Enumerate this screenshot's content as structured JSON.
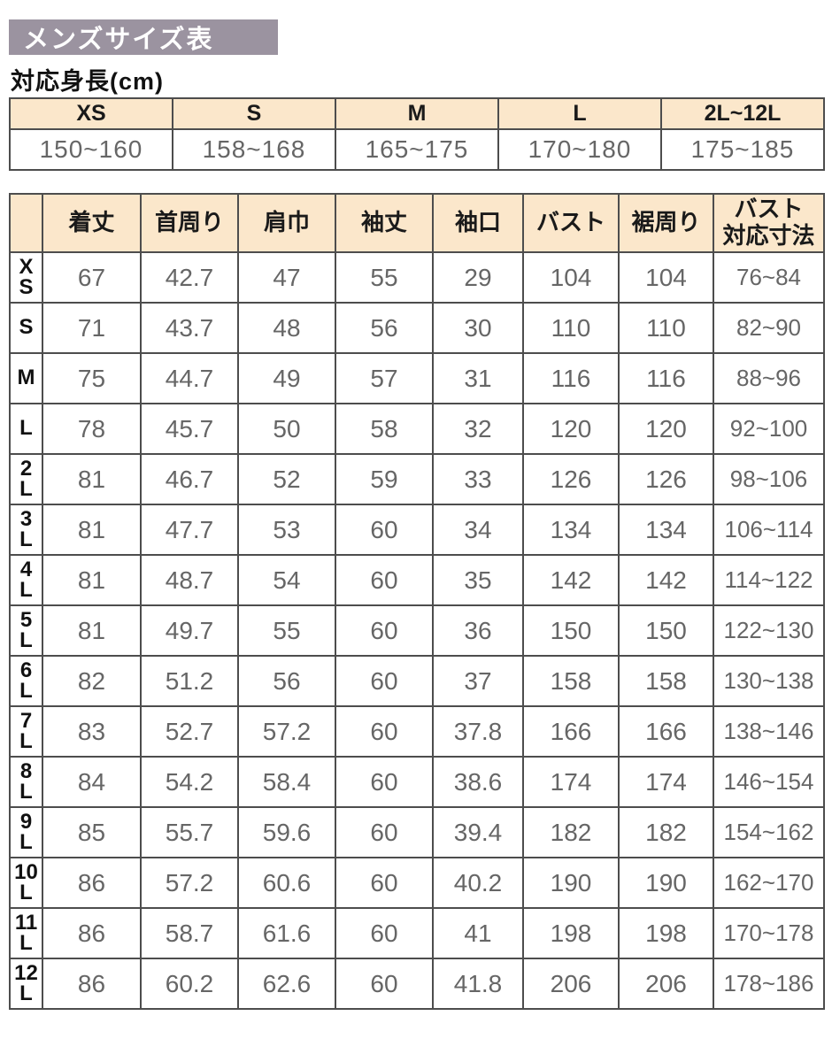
{
  "page": {
    "title": "メンズサイズ表",
    "subtitle": "対応身長(cm)"
  },
  "colors": {
    "title_bg": "#9b93a0",
    "title_text": "#ffffff",
    "header_bg": "#fbe7cb",
    "border": "#4d4d4d",
    "number_text": "#666666",
    "heading_text": "#1a1a1a"
  },
  "height_table": {
    "columns": [
      "XS",
      "S",
      "M",
      "L",
      "2L~12L"
    ],
    "values": [
      "150~160",
      "158~168",
      "165~175",
      "170~180",
      "175~185"
    ]
  },
  "size_table": {
    "columns": [
      "着丈",
      "首周り",
      "肩巾",
      "袖丈",
      "袖口",
      "バスト",
      "裾周り",
      "バスト\n対応寸法"
    ],
    "rows": [
      {
        "label": "XS",
        "values": [
          "67",
          "42.7",
          "47",
          "55",
          "29",
          "104",
          "104",
          "76~84"
        ]
      },
      {
        "label": "S",
        "values": [
          "71",
          "43.7",
          "48",
          "56",
          "30",
          "110",
          "110",
          "82~90"
        ]
      },
      {
        "label": "M",
        "values": [
          "75",
          "44.7",
          "49",
          "57",
          "31",
          "116",
          "116",
          "88~96"
        ]
      },
      {
        "label": "L",
        "values": [
          "78",
          "45.7",
          "50",
          "58",
          "32",
          "120",
          "120",
          "92~100"
        ]
      },
      {
        "label": "2L",
        "values": [
          "81",
          "46.7",
          "52",
          "59",
          "33",
          "126",
          "126",
          "98~106"
        ]
      },
      {
        "label": "3L",
        "values": [
          "81",
          "47.7",
          "53",
          "60",
          "34",
          "134",
          "134",
          "106~114"
        ]
      },
      {
        "label": "4L",
        "values": [
          "81",
          "48.7",
          "54",
          "60",
          "35",
          "142",
          "142",
          "114~122"
        ]
      },
      {
        "label": "5L",
        "values": [
          "81",
          "49.7",
          "55",
          "60",
          "36",
          "150",
          "150",
          "122~130"
        ]
      },
      {
        "label": "6L",
        "values": [
          "82",
          "51.2",
          "56",
          "60",
          "37",
          "158",
          "158",
          "130~138"
        ]
      },
      {
        "label": "7L",
        "values": [
          "83",
          "52.7",
          "57.2",
          "60",
          "37.8",
          "166",
          "166",
          "138~146"
        ]
      },
      {
        "label": "8L",
        "values": [
          "84",
          "54.2",
          "58.4",
          "60",
          "38.6",
          "174",
          "174",
          "146~154"
        ]
      },
      {
        "label": "9L",
        "values": [
          "85",
          "55.7",
          "59.6",
          "60",
          "39.4",
          "182",
          "182",
          "154~162"
        ]
      },
      {
        "label": "10L",
        "values": [
          "86",
          "57.2",
          "60.6",
          "60",
          "40.2",
          "190",
          "190",
          "162~170"
        ]
      },
      {
        "label": "11L",
        "values": [
          "86",
          "58.7",
          "61.6",
          "60",
          "41",
          "198",
          "198",
          "170~178"
        ]
      },
      {
        "label": "12L",
        "values": [
          "86",
          "60.2",
          "62.6",
          "60",
          "41.8",
          "206",
          "206",
          "178~186"
        ]
      }
    ]
  }
}
